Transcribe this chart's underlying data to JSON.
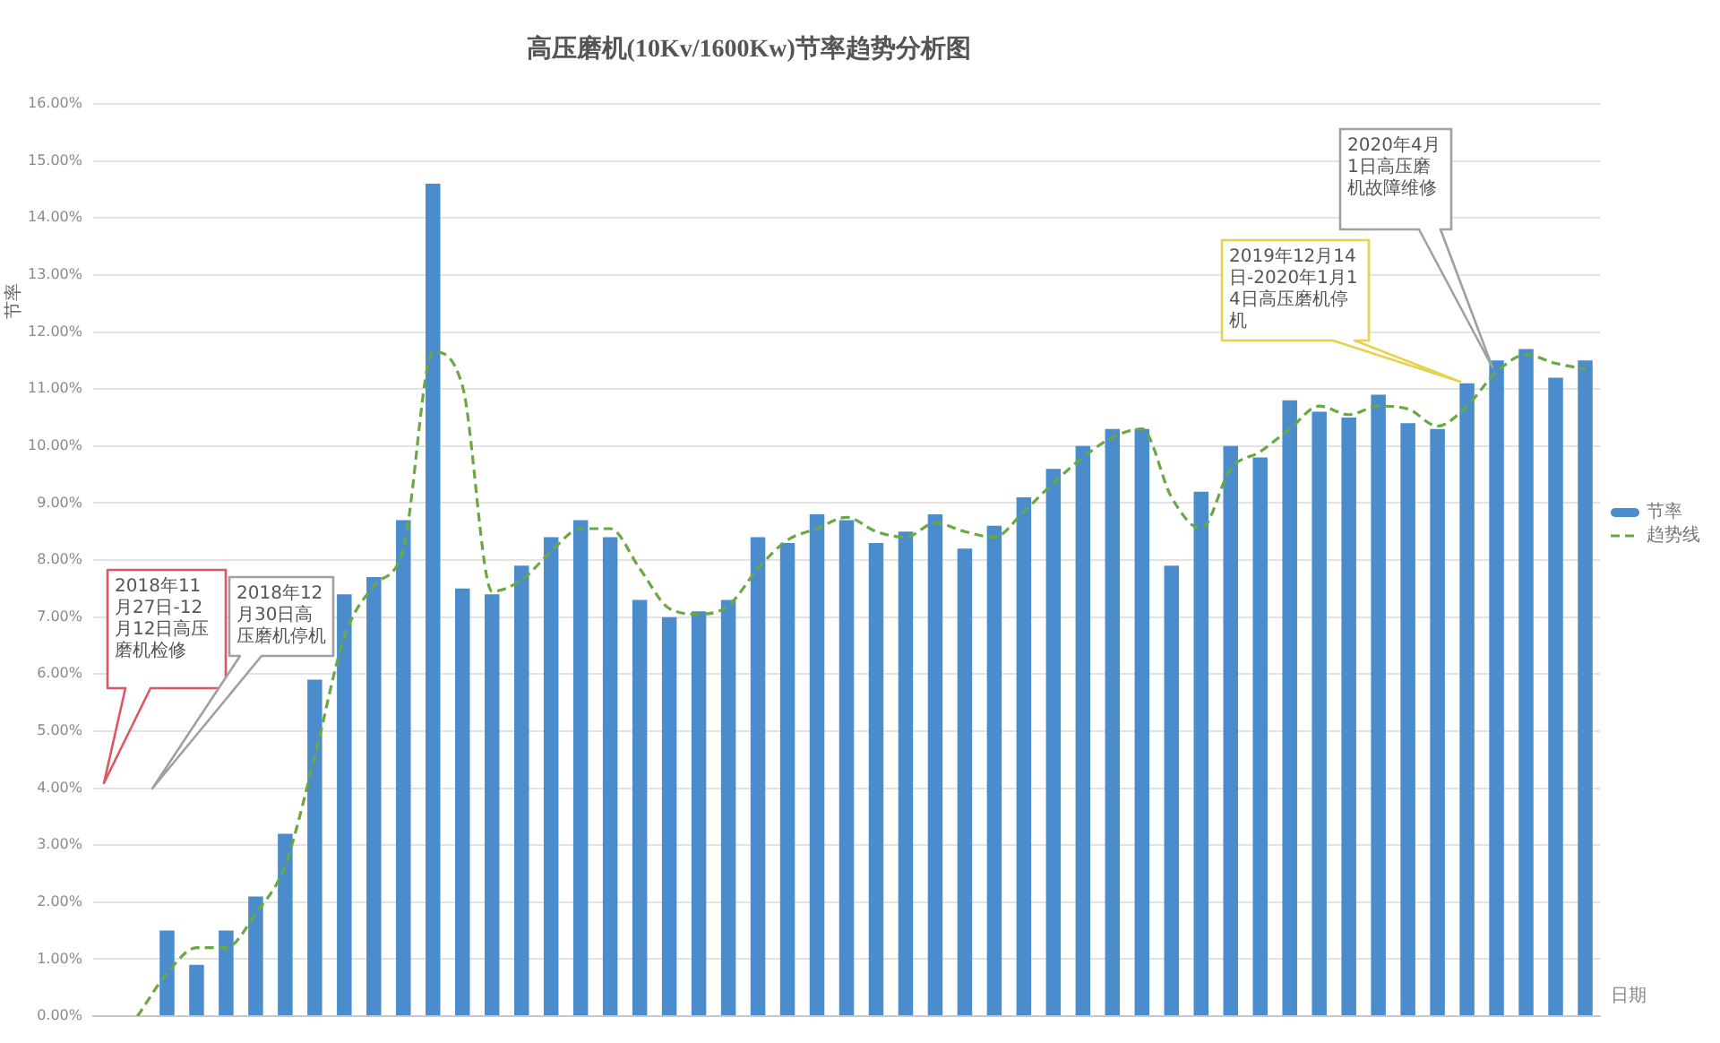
{
  "chart_data": {
    "type": "bar",
    "title": "高压磨机(10Kv/1600Kw)节率趋势分析图",
    "ylabel": "节率",
    "xlabel": "日期",
    "categories": [
      null,
      null,
      null,
      null,
      null,
      null,
      null,
      null,
      null,
      null,
      null,
      null,
      null,
      null,
      null,
      null,
      null,
      null,
      null,
      null,
      null,
      null,
      null,
      null,
      null,
      null,
      null,
      null,
      null,
      null,
      null,
      null,
      null,
      null,
      null,
      null,
      null,
      null,
      null,
      null,
      null,
      null,
      null,
      null,
      null,
      null,
      null,
      null,
      null,
      null,
      null
    ],
    "series": [
      {
        "name": "节率",
        "color": "#4a8ccc",
        "values": [
          0,
          0,
          1.5,
          0.9,
          1.5,
          2.1,
          3.2,
          5.9,
          7.4,
          7.7,
          8.7,
          14.6,
          7.5,
          7.4,
          7.9,
          8.4,
          8.7,
          8.4,
          7.3,
          7.0,
          7.1,
          7.3,
          8.4,
          8.3,
          8.8,
          8.7,
          8.3,
          8.5,
          8.8,
          8.2,
          8.6,
          9.1,
          9.6,
          10.0,
          10.3,
          10.3,
          7.9,
          9.2,
          10.0,
          9.8,
          10.8,
          10.6,
          10.5,
          10.9,
          10.4,
          10.3,
          11.1,
          11.5,
          11.7,
          11.2,
          11.5
        ]
      },
      {
        "name": "趋势线",
        "type": "line",
        "color": "#6aa842",
        "line_style": "dashed",
        "values": [
          null,
          0,
          0.75,
          1.2,
          1.2,
          1.8,
          2.65,
          4.55,
          6.65,
          7.55,
          8.2,
          11.65,
          11.05,
          7.45,
          7.65,
          8.15,
          8.55,
          8.55,
          7.85,
          7.15,
          7.05,
          7.2,
          7.85,
          8.35,
          8.55,
          8.75,
          8.5,
          8.4,
          8.65,
          8.5,
          8.4,
          8.85,
          9.35,
          9.8,
          10.15,
          10.3,
          9.1,
          8.55,
          9.6,
          9.9,
          10.3,
          10.7,
          10.55,
          10.7,
          10.65,
          10.35,
          10.7,
          11.3,
          11.6,
          11.45,
          11.35
        ]
      }
    ],
    "ylim": [
      0,
      16
    ],
    "yticks": [
      {
        "value": 0,
        "label": "0.00%"
      },
      {
        "value": 1,
        "label": "1.00%"
      },
      {
        "value": 2,
        "label": "2.00%"
      },
      {
        "value": 3,
        "label": "3.00%"
      },
      {
        "value": 4,
        "label": "4.00%"
      },
      {
        "value": 5,
        "label": "5.00%"
      },
      {
        "value": 6,
        "label": "6.00%"
      },
      {
        "value": 7,
        "label": "7.00%"
      },
      {
        "value": 8,
        "label": "8.00%"
      },
      {
        "value": 9,
        "label": "9.00%"
      },
      {
        "value": 10,
        "label": "10.00%"
      },
      {
        "value": 11,
        "label": "11.00%"
      },
      {
        "value": 12,
        "label": "12.00%"
      },
      {
        "value": 13,
        "label": "13.00%"
      },
      {
        "value": 14,
        "label": "14.00%"
      },
      {
        "value": 15,
        "label": "15.00%"
      },
      {
        "value": 16,
        "label": "16.00%"
      }
    ],
    "annotations": [
      "2018年11月27日-12月12日高压磨机检修",
      "2018年12月30日高压磨机停机",
      "2019年12月14日-2020年1月14日高压磨机停机",
      "2020年4月1日高压磨机故障维修"
    ],
    "grid": "y",
    "legend": "right",
    "tick_labels": "y"
  }
}
